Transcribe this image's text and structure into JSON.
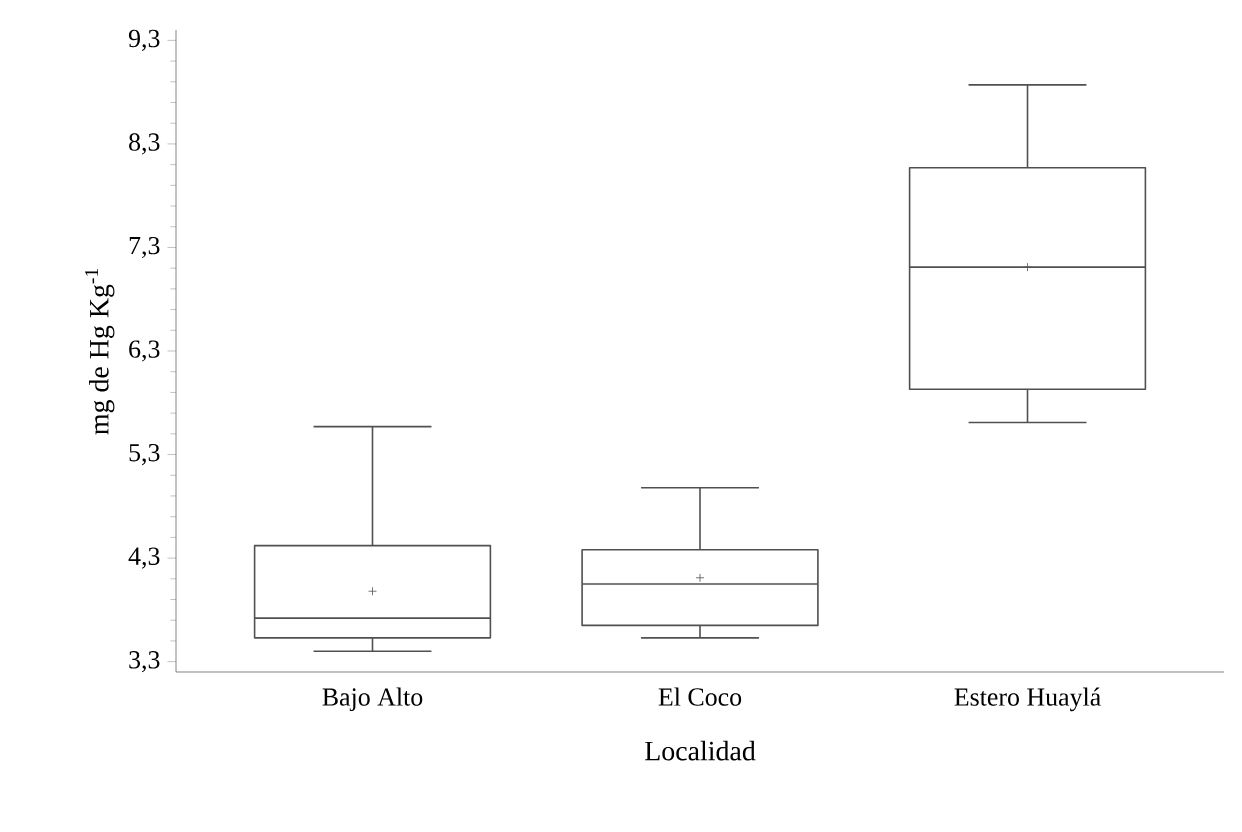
{
  "chart_data": {
    "type": "box",
    "xlabel": "Localidad",
    "ylabel": "mg de Hg Kg$^{-1}$",
    "categories": [
      "Bajo Alto",
      "El Coco",
      "Estero Huaylá"
    ],
    "series": [
      {
        "color": "#505050",
        "boxes": [
          {
            "low": 3.4,
            "q1": 3.53,
            "median": 3.72,
            "q3": 4.42,
            "high": 5.57,
            "mean": 3.98
          },
          {
            "low": 3.53,
            "q1": 3.65,
            "median": 4.05,
            "q3": 4.38,
            "high": 4.98,
            "mean": 4.11
          },
          {
            "low": 5.61,
            "q1": 5.93,
            "median": 7.11,
            "q3": 8.07,
            "high": 8.87,
            "mean": 7.11
          }
        ]
      }
    ],
    "ylim": [
      3.2,
      9.4
    ],
    "yticks": [
      {
        "value": 3.3,
        "label": "3,3"
      },
      {
        "value": 4.3,
        "label": "4,3"
      },
      {
        "value": 5.3,
        "label": "5,3"
      },
      {
        "value": 6.3,
        "label": "6,3"
      },
      {
        "value": 7.3,
        "label": "7,3"
      },
      {
        "value": 8.3,
        "label": "8,3"
      },
      {
        "value": 9.3,
        "label": "9,3"
      }
    ]
  }
}
